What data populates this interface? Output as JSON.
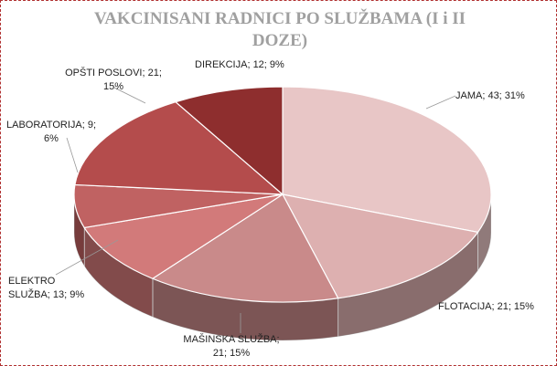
{
  "chart_data": {
    "type": "pie3d",
    "title": "VAKCINISANI RADNICI PO SLUŽBAMA (I i II DOZE)",
    "values": [
      43,
      21,
      21,
      13,
      9,
      21,
      12
    ],
    "value_labels": [
      "JAMA; 43; 31%",
      "FLOTACIJA; 21; 15%",
      "MAŠINSKA SLUŽBA; 21; 15%",
      "ELEKTRO SLUŽBA; 13; 9%",
      "LABORATORIJA; 9; 6%",
      "OPŠTI POSLOVI; 21; 15%",
      "DIREKCIJA; 12; 9%"
    ],
    "colors": [
      "#e8c6c6",
      "#ddb0b0",
      "#c98a8a",
      "#d27a7a",
      "#c06262",
      "#b44c4c",
      "#8e2e2e"
    ]
  }
}
